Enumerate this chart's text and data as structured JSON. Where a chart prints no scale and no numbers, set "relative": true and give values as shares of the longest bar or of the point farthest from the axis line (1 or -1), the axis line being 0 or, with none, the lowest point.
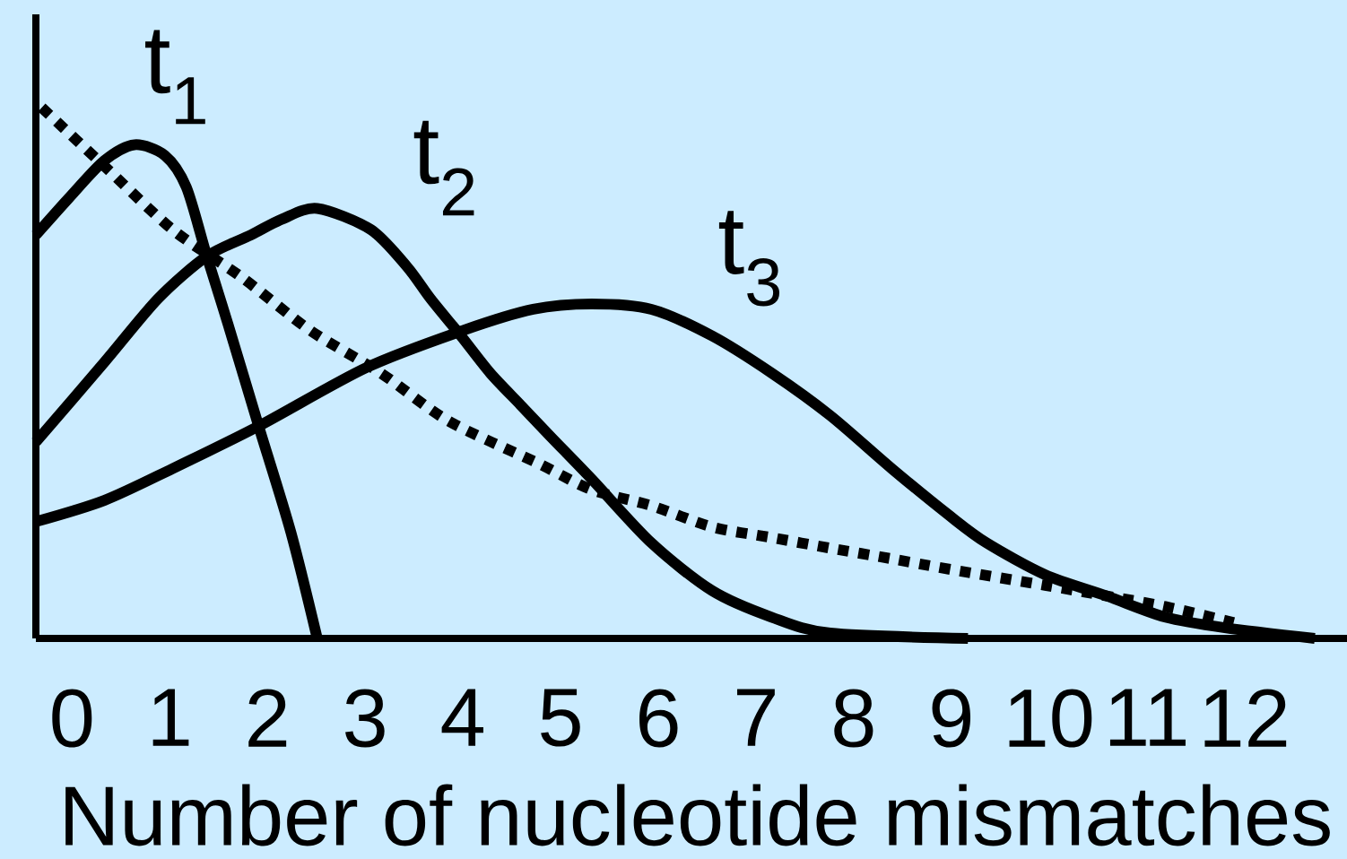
{
  "chart_data": {
    "type": "line",
    "xlabel": "Number of nucleotide mismatches",
    "relative": true,
    "tick_labels": "x",
    "marker": "none",
    "xlim": [
      -0.37,
      13.05
    ],
    "xticks": [
      0,
      1,
      2,
      3,
      4,
      5,
      6,
      7,
      8,
      9,
      10,
      11,
      12
    ],
    "series": [
      {
        "name": "t$_{1}$",
        "color": "#000000",
        "line_style": "solid",
        "x": [
          -0.37,
          -0.03,
          0.33,
          0.64,
          0.95,
          1.17,
          1.38,
          1.6,
          1.91,
          2.24,
          2.51
        ],
        "values": [
          0.76,
          0.83,
          0.9,
          0.93,
          0.91,
          0.85,
          0.72,
          0.59,
          0.4,
          0.2,
          0
        ]
      },
      {
        "name": "t$_{2}$",
        "color": "#000000",
        "line_style": "solid",
        "x": [
          -0.37,
          0.33,
          0.88,
          1.38,
          1.83,
          2.15,
          2.51,
          3.06,
          3.43,
          3.67,
          3.98,
          4.28,
          4.59,
          4.9,
          5.32,
          5.93,
          6.55,
          7.16,
          7.76,
          9.17
        ],
        "values": [
          0.37,
          0.52,
          0.64,
          0.72,
          0.76,
          0.79,
          0.81,
          0.77,
          0.7,
          0.64,
          0.57,
          0.5,
          0.44,
          0.38,
          0.3,
          0.18,
          0.09,
          0.04,
          0.01,
          0
        ]
      },
      {
        "name": "t$_{3}$",
        "color": "#000000",
        "line_style": "solid",
        "x": [
          -0.37,
          0.33,
          1.03,
          1.91,
          3.01,
          4.0,
          4.72,
          5.32,
          5.93,
          6.55,
          7.16,
          7.76,
          8.39,
          8.99,
          9.36,
          9.96,
          10.59,
          11.19,
          11.8,
          12.72
        ],
        "values": [
          0.22,
          0.26,
          0.32,
          0.4,
          0.51,
          0.58,
          0.62,
          0.63,
          0.62,
          0.57,
          0.5,
          0.42,
          0.32,
          0.23,
          0.18,
          0.12,
          0.08,
          0.04,
          0.02,
          0
        ]
      },
      {
        "color": "#000000",
        "line_style": "dotted",
        "x": [
          -0.31,
          0.33,
          1.03,
          1.74,
          2.44,
          3.16,
          3.85,
          4.77,
          5.32,
          5.93,
          6.55,
          7.16,
          7.76,
          8.39,
          8.99,
          9.96,
          10.59,
          11.19,
          11.89
        ],
        "values": [
          1.0,
          0.89,
          0.77,
          0.68,
          0.58,
          0.5,
          0.41,
          0.33,
          0.28,
          0.25,
          0.21,
          0.19,
          0.17,
          0.15,
          0.13,
          0.1,
          0.08,
          0.06,
          0.03
        ]
      }
    ]
  }
}
